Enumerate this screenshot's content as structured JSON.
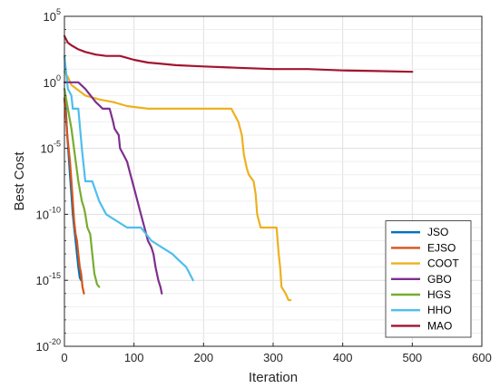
{
  "chart_data": {
    "type": "line",
    "xlabel": "Iteration",
    "ylabel": "Best Cost",
    "xlim": [
      0,
      600
    ],
    "ylim_exponent": [
      -20,
      5
    ],
    "yscale": "log",
    "grid": true,
    "legend_placement": "bottom-right",
    "x_ticks": [
      "0",
      "100",
      "200",
      "300",
      "400",
      "500",
      "600"
    ],
    "y_ticks": [
      {
        "exp": -20,
        "base": "10",
        "sup": "-20"
      },
      {
        "exp": -15,
        "base": "10",
        "sup": "-15"
      },
      {
        "exp": -10,
        "base": "10",
        "sup": "-10"
      },
      {
        "exp": -5,
        "base": "10",
        "sup": "-5"
      },
      {
        "exp": 0,
        "base": "10",
        "sup": "0"
      },
      {
        "exp": 5,
        "base": "10",
        "sup": "5"
      }
    ],
    "series": [
      {
        "name": "JSO",
        "color": "#0072BD",
        "points": [
          [
            0,
            -1.3
          ],
          [
            2,
            -2
          ],
          [
            4,
            -4
          ],
          [
            6,
            -5.5
          ],
          [
            8,
            -7
          ],
          [
            10,
            -8.5
          ],
          [
            12,
            -10
          ],
          [
            14,
            -11
          ],
          [
            16,
            -12
          ],
          [
            18,
            -13
          ],
          [
            20,
            -14
          ],
          [
            22,
            -14.8
          ],
          [
            24,
            -15
          ]
        ]
      },
      {
        "name": "EJSO",
        "color": "#D95319",
        "points": [
          [
            0,
            -1.2
          ],
          [
            2,
            -2.5
          ],
          [
            4,
            -4
          ],
          [
            6,
            -5
          ],
          [
            8,
            -6
          ],
          [
            10,
            -7.5
          ],
          [
            12,
            -9
          ],
          [
            14,
            -10.5
          ],
          [
            16,
            -11.5
          ],
          [
            18,
            -12
          ],
          [
            20,
            -13
          ],
          [
            22,
            -14
          ],
          [
            24,
            -14.5
          ],
          [
            26,
            -15.5
          ],
          [
            28,
            -16
          ]
        ]
      },
      {
        "name": "COOT",
        "color": "#EDB120",
        "points": [
          [
            0,
            0.8
          ],
          [
            5,
            0.4
          ],
          [
            10,
            -0.2
          ],
          [
            20,
            -0.6
          ],
          [
            30,
            -1
          ],
          [
            50,
            -1.3
          ],
          [
            70,
            -1.5
          ],
          [
            90,
            -1.8
          ],
          [
            120,
            -2
          ],
          [
            240,
            -2
          ],
          [
            245,
            -2.5
          ],
          [
            250,
            -3
          ],
          [
            255,
            -4
          ],
          [
            258,
            -5.5
          ],
          [
            262,
            -6.5
          ],
          [
            265,
            -7
          ],
          [
            272,
            -7.5
          ],
          [
            275,
            -8.5
          ],
          [
            277,
            -10
          ],
          [
            282,
            -11
          ],
          [
            300,
            -11
          ],
          [
            305,
            -11
          ],
          [
            308,
            -13
          ],
          [
            310,
            -14
          ],
          [
            312,
            -15.5
          ],
          [
            318,
            -16
          ],
          [
            322,
            -16.5
          ],
          [
            325,
            -16.5
          ]
        ]
      },
      {
        "name": "GBO",
        "color": "#7E2F8E",
        "points": [
          [
            0,
            0
          ],
          [
            20,
            0
          ],
          [
            30,
            -0.5
          ],
          [
            45,
            -1.5
          ],
          [
            55,
            -2
          ],
          [
            65,
            -2
          ],
          [
            70,
            -3
          ],
          [
            72,
            -3.5
          ],
          [
            78,
            -4
          ],
          [
            80,
            -5
          ],
          [
            85,
            -5.5
          ],
          [
            90,
            -6
          ],
          [
            95,
            -7
          ],
          [
            100,
            -8
          ],
          [
            105,
            -9
          ],
          [
            110,
            -10
          ],
          [
            115,
            -11
          ],
          [
            120,
            -12
          ],
          [
            125,
            -12.5
          ],
          [
            128,
            -13
          ],
          [
            131,
            -14
          ],
          [
            135,
            -15
          ],
          [
            138,
            -15.5
          ],
          [
            140,
            -16
          ]
        ]
      },
      {
        "name": "HGS",
        "color": "#77AC30",
        "points": [
          [
            0,
            -0.5
          ],
          [
            5,
            -2
          ],
          [
            10,
            -3.5
          ],
          [
            15,
            -5.5
          ],
          [
            20,
            -7.5
          ],
          [
            25,
            -9
          ],
          [
            28,
            -9.5
          ],
          [
            30,
            -10
          ],
          [
            33,
            -11
          ],
          [
            37,
            -11.5
          ],
          [
            40,
            -13
          ],
          [
            43,
            -14.5
          ],
          [
            47,
            -15.3
          ],
          [
            50,
            -15.5
          ]
        ]
      },
      {
        "name": "HHO",
        "color": "#4DBEEE",
        "points": [
          [
            0,
            2
          ],
          [
            5,
            -0.5
          ],
          [
            10,
            -1
          ],
          [
            12,
            -2
          ],
          [
            20,
            -2
          ],
          [
            25,
            -5
          ],
          [
            30,
            -7.5
          ],
          [
            40,
            -7.5
          ],
          [
            50,
            -9
          ],
          [
            60,
            -10
          ],
          [
            75,
            -10.5
          ],
          [
            90,
            -11
          ],
          [
            100,
            -11
          ],
          [
            110,
            -11
          ],
          [
            125,
            -12
          ],
          [
            140,
            -12.5
          ],
          [
            155,
            -13
          ],
          [
            165,
            -13.5
          ],
          [
            175,
            -14
          ],
          [
            180,
            -14.5
          ],
          [
            185,
            -15
          ]
        ]
      },
      {
        "name": "MAO",
        "color": "#A2142F",
        "points": [
          [
            0,
            3.5
          ],
          [
            5,
            3
          ],
          [
            10,
            2.8
          ],
          [
            20,
            2.5
          ],
          [
            30,
            2.3
          ],
          [
            45,
            2.1
          ],
          [
            60,
            2
          ],
          [
            80,
            2
          ],
          [
            100,
            1.7
          ],
          [
            120,
            1.5
          ],
          [
            140,
            1.4
          ],
          [
            160,
            1.3
          ],
          [
            200,
            1.2
          ],
          [
            250,
            1.1
          ],
          [
            300,
            1
          ],
          [
            350,
            1
          ],
          [
            400,
            0.9
          ],
          [
            450,
            0.85
          ],
          [
            500,
            0.8
          ]
        ]
      }
    ]
  }
}
